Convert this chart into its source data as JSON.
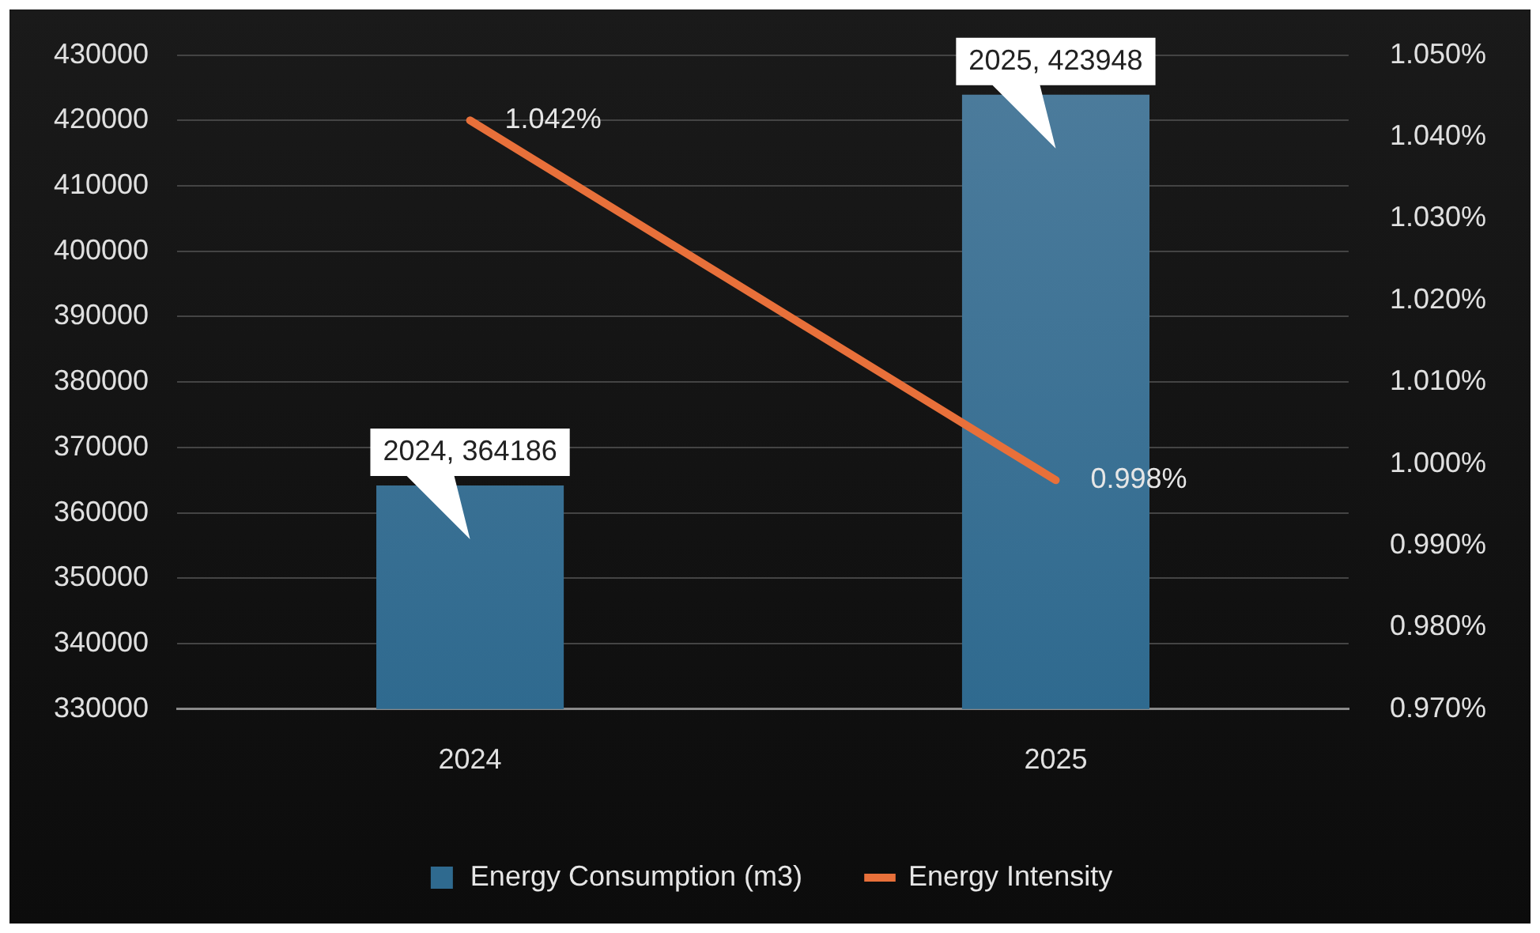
{
  "chart_data": {
    "type": "bar",
    "categories": [
      "2024",
      "2025"
    ],
    "series": [
      {
        "name": "Energy Consumption (m3)",
        "color": "#2f6a8f",
        "values": [
          364186,
          423948
        ],
        "value_labels": [
          "2024, 364186",
          "2025, 423948"
        ]
      },
      {
        "name": "Energy Intensity",
        "type": "line",
        "axis": "y2",
        "color": "#e8703a",
        "values": [
          1.042,
          0.998
        ],
        "value_labels": [
          "1.042%",
          "0.998%"
        ]
      }
    ],
    "ylim": [
      330000,
      430000
    ],
    "yticks": [
      330000,
      340000,
      350000,
      360000,
      370000,
      380000,
      390000,
      400000,
      410000,
      420000,
      430000
    ],
    "y2lim": [
      0.97,
      1.05
    ],
    "y2ticks": [
      {
        "value": 0.97,
        "label": "0.970%"
      },
      {
        "value": 0.98,
        "label": "0.980%"
      },
      {
        "value": 0.99,
        "label": "0.990%"
      },
      {
        "value": 1.0,
        "label": "1.000%"
      },
      {
        "value": 1.01,
        "label": "1.010%"
      },
      {
        "value": 1.02,
        "label": "1.020%"
      },
      {
        "value": 1.03,
        "label": "1.030%"
      },
      {
        "value": 1.04,
        "label": "1.040%"
      },
      {
        "value": 1.05,
        "label": "1.050%"
      }
    ],
    "grid": "y",
    "legend": "bottom",
    "marker": "none"
  }
}
